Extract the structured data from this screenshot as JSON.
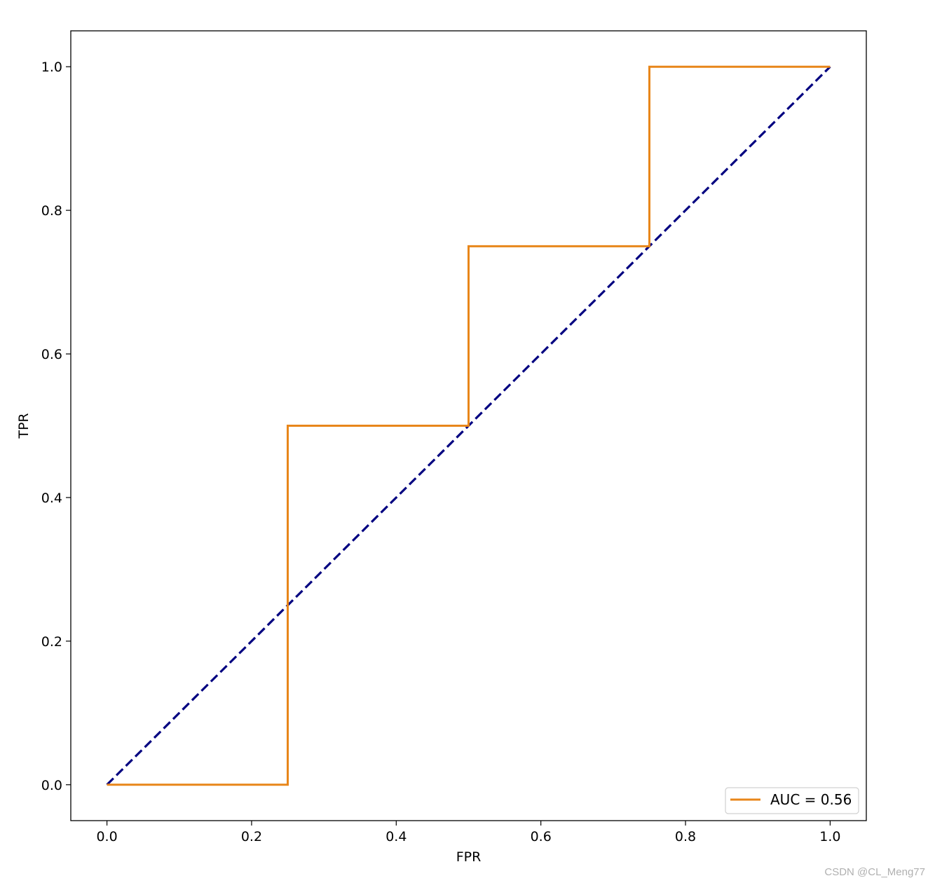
{
  "chart_data": {
    "type": "line",
    "title": "",
    "xlabel": "FPR",
    "ylabel": "TPR",
    "xlim": [
      -0.05,
      1.05
    ],
    "ylim": [
      -0.05,
      1.05
    ],
    "x_ticks": [
      "0.0",
      "0.2",
      "0.4",
      "0.6",
      "0.8",
      "1.0"
    ],
    "y_ticks": [
      "0.0",
      "0.2",
      "0.4",
      "0.6",
      "0.8",
      "1.0"
    ],
    "grid": false,
    "legend_position": "lower-right",
    "series": [
      {
        "name": "AUC = 0.56",
        "style": "solid",
        "color": "#e8861a",
        "x": [
          0.0,
          0.25,
          0.25,
          0.5,
          0.5,
          0.75,
          0.75,
          1.0
        ],
        "y": [
          0.0,
          0.0,
          0.5,
          0.5,
          0.75,
          0.75,
          1.0,
          1.0
        ]
      },
      {
        "style": "dashed",
        "color": "#000080",
        "x": [
          0.0,
          1.0
        ],
        "y": [
          0.0,
          1.0
        ]
      }
    ]
  },
  "watermark": "CSDN @CL_Meng77"
}
